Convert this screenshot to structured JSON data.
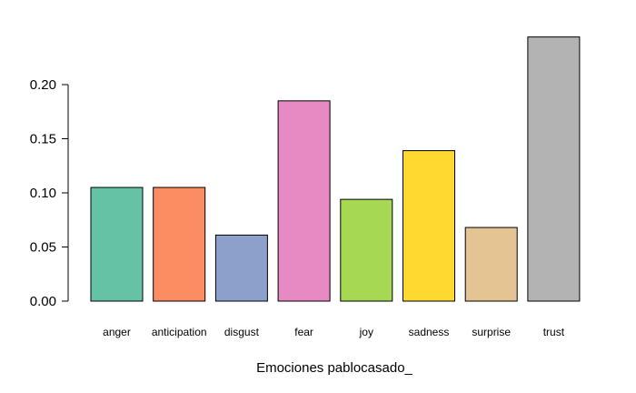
{
  "chart_data": {
    "type": "bar",
    "title": "",
    "xlabel": "Emociones pablocasado_",
    "ylabel": "",
    "ylim": [
      0,
      0.25
    ],
    "yticks": [
      "0.00",
      "0.05",
      "0.10",
      "0.15",
      "0.20"
    ],
    "categories": [
      "anger",
      "anticipation",
      "disgust",
      "fear",
      "joy",
      "sadness",
      "surprise",
      "trust"
    ],
    "values": [
      0.105,
      0.105,
      0.061,
      0.185,
      0.094,
      0.139,
      0.068,
      0.244
    ],
    "colors": [
      "#66c2a5",
      "#fc8d62",
      "#8da0cb",
      "#e78ac3",
      "#a6d854",
      "#ffd92f",
      "#e5c494",
      "#b3b3b3"
    ],
    "grid": false,
    "legend": "none"
  }
}
